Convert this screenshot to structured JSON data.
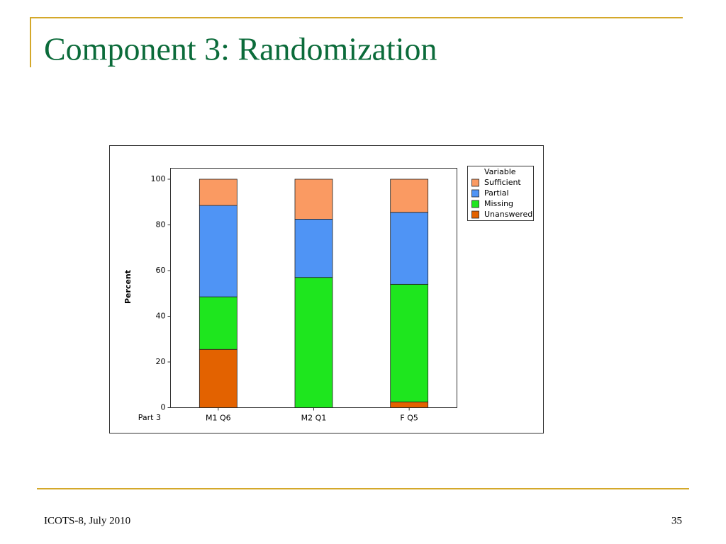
{
  "title": "Component 3: Randomization",
  "footer": "ICOTS-8, July 2010",
  "page_number": 35,
  "chart_data": {
    "type": "stacked_bar",
    "ylabel": "Percent",
    "xlabel": "Part 3",
    "legend_title": "Variable",
    "legend": "upper right outside",
    "categories": [
      "M1 Q6",
      "M2 Q1",
      "F Q5"
    ],
    "series": [
      {
        "name": "Unanswered",
        "color": "#e36200",
        "values": [
          25.5,
          0,
          2.5
        ]
      },
      {
        "name": "Missing",
        "color": "#1ee61e",
        "values": [
          23,
          57,
          51.5
        ]
      },
      {
        "name": "Partial",
        "color": "#4f94f5",
        "values": [
          40,
          25.5,
          31.5
        ]
      },
      {
        "name": "Sufficient",
        "color": "#fa9a62",
        "values": [
          11.5,
          17.5,
          14.5
        ]
      }
    ],
    "ylim": [
      0,
      100
    ],
    "yticks": [
      0,
      20,
      40,
      60,
      80,
      100
    ],
    "grid": false
  }
}
